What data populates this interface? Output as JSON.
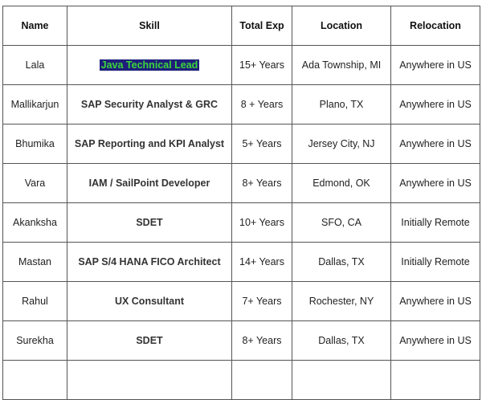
{
  "table": {
    "headers": [
      "Name",
      "Skill",
      "Total Exp",
      "Location",
      "Relocation"
    ],
    "rows": [
      {
        "name": "Lala",
        "skill": "Java Technical Lead",
        "exp": "15+ Years",
        "location": "Ada Township, MI",
        "relocation": "Anywhere in US",
        "highlight": true
      },
      {
        "name": "Mallikarjun",
        "skill": "SAP Security Analyst & GRC",
        "exp": "8 + Years",
        "location": "Plano, TX",
        "relocation": "Anywhere in US"
      },
      {
        "name": "Bhumika",
        "skill": "SAP Reporting and KPI Analyst",
        "exp": "5+ Years",
        "location": "Jersey City, NJ",
        "relocation": "Anywhere in US"
      },
      {
        "name": "Vara",
        "skill": "IAM / SailPoint Developer",
        "exp": "8+ Years",
        "location": "Edmond, OK",
        "relocation": "Anywhere in US"
      },
      {
        "name": "Akanksha",
        "skill": "SDET",
        "exp": "10+ Years",
        "location": "SFO, CA",
        "relocation": "Initially Remote"
      },
      {
        "name": "Mastan",
        "skill": "SAP S/4 HANA FICO Architect",
        "exp": "14+ Years",
        "location": "Dallas, TX",
        "relocation": "Initially Remote"
      },
      {
        "name": "Rahul",
        "skill": "UX Consultant",
        "exp": "7+ Years",
        "location": "Rochester, NY",
        "relocation": "Anywhere in US"
      },
      {
        "name": "Surekha",
        "skill": "SDET",
        "exp": "8+ Years",
        "location": "Dallas, TX",
        "relocation": "Anywhere in US"
      }
    ]
  },
  "colors": {
    "highlight_bg": "#1f1f7a",
    "highlight_text": "#3bd63b",
    "border": "#555555"
  }
}
